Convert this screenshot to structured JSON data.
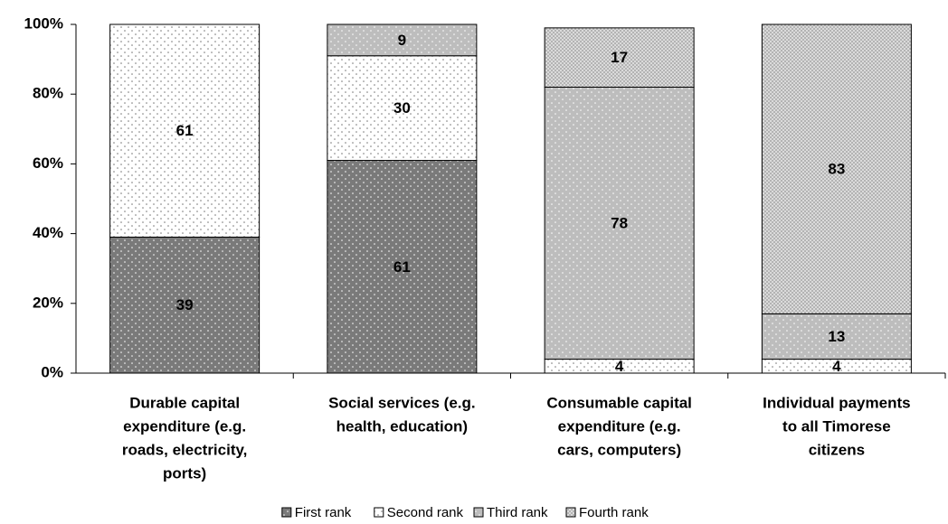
{
  "chart_data": {
    "type": "stacked_bar",
    "categories": [
      [
        "Durable capital",
        "expenditure (e.g.",
        "roads, electricity,",
        "ports)"
      ],
      [
        "Social services (e.g.",
        "health, education)"
      ],
      [
        "Consumable capital",
        "expenditure (e.g.",
        "cars, computers)"
      ],
      [
        "Individual payments",
        "to all Timorese",
        "citizens"
      ]
    ],
    "series": [
      {
        "name": "First rank",
        "color": "#7a7a7a",
        "values": [
          39,
          61,
          null,
          null
        ]
      },
      {
        "name": "Second rank",
        "color": "#ffffff",
        "values": [
          61,
          30,
          4,
          4
        ]
      },
      {
        "name": "Third rank",
        "color": "#bdbdbd",
        "values": [
          null,
          9,
          78,
          13
        ]
      },
      {
        "name": "Fourth rank",
        "color": "#e0e0e0",
        "values": [
          null,
          null,
          17,
          83
        ]
      }
    ],
    "ylim": [
      0,
      100
    ],
    "yticks": [
      {
        "value": 0,
        "label": "0%"
      },
      {
        "value": 20,
        "label": "20%"
      },
      {
        "value": 40,
        "label": "40%"
      },
      {
        "value": 60,
        "label": "60%"
      },
      {
        "value": 80,
        "label": "80%"
      },
      {
        "value": 100,
        "label": "100%"
      }
    ],
    "legend": "bottom"
  }
}
